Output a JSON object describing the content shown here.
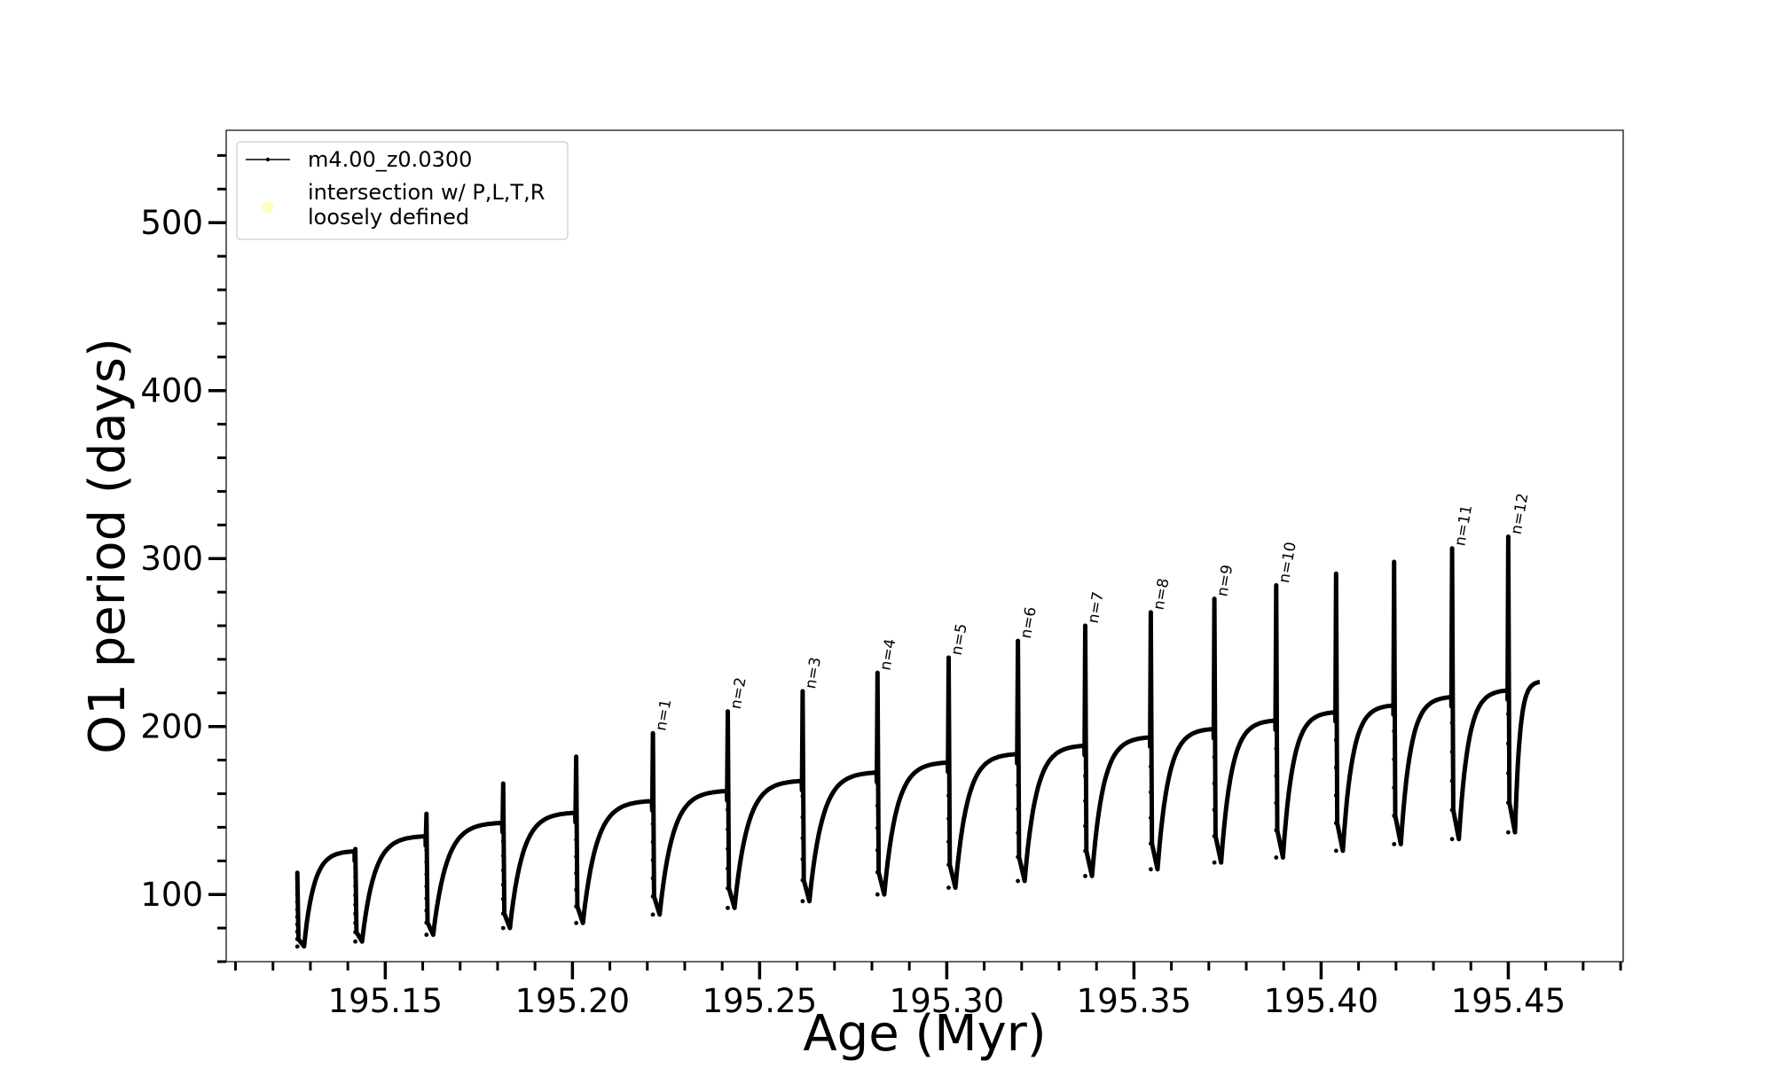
{
  "chart_data": {
    "type": "line",
    "xlabel": "Age (Myr)",
    "ylabel": "O1 period (days)",
    "xlim": [
      195.1075,
      195.4807
    ],
    "ylim": [
      60,
      555
    ],
    "xticks": [
      195.15,
      195.2,
      195.25,
      195.3,
      195.35,
      195.4,
      195.45
    ],
    "xtick_labels": [
      "195.15",
      "195.20",
      "195.25",
      "195.30",
      "195.35",
      "195.40",
      "195.45"
    ],
    "yticks": [
      100,
      200,
      300,
      400,
      500
    ],
    "ytick_labels": [
      "100",
      "200",
      "300",
      "400",
      "500"
    ],
    "x_minor_step": 0.01,
    "y_minor_step": 20,
    "grid": false,
    "legend": {
      "placement": "upper left",
      "entries": [
        {
          "label": "m4.00_z0.0300",
          "marker": "line-dot",
          "color": "#000000"
        },
        {
          "label_lines": [
            "intersection w/ P,L,T,R",
            "loosely defined"
          ],
          "marker": "circle",
          "color": "#ffff99"
        }
      ]
    },
    "series": [
      {
        "name": "m4.00_z0.0300",
        "color": "#000000",
        "cycles": [
          {
            "start": 195.1265,
            "min": 69,
            "plateau": 126,
            "spike": 113
          },
          {
            "start": 195.142,
            "min": 72,
            "plateau": 135,
            "spike": 127
          },
          {
            "start": 195.161,
            "min": 76,
            "plateau": 143,
            "spike": 148
          },
          {
            "start": 195.1815,
            "min": 80,
            "plateau": 149,
            "spike": 166
          },
          {
            "start": 195.201,
            "min": 83,
            "plateau": 156,
            "spike": 182
          },
          {
            "start": 195.2215,
            "min": 88,
            "plateau": 162,
            "spike": 196
          },
          {
            "start": 195.2415,
            "min": 92,
            "plateau": 168,
            "spike": 209
          },
          {
            "start": 195.2615,
            "min": 96,
            "plateau": 173,
            "spike": 221
          },
          {
            "start": 195.2815,
            "min": 100,
            "plateau": 179,
            "spike": 232
          },
          {
            "start": 195.3005,
            "min": 104,
            "plateau": 184,
            "spike": 241
          },
          {
            "start": 195.319,
            "min": 108,
            "plateau": 189,
            "spike": 251
          },
          {
            "start": 195.337,
            "min": 111,
            "plateau": 194,
            "spike": 260
          },
          {
            "start": 195.3545,
            "min": 115,
            "plateau": 199,
            "spike": 268
          },
          {
            "start": 195.3715,
            "min": 119,
            "plateau": 204,
            "spike": 276
          },
          {
            "start": 195.388,
            "min": 122,
            "plateau": 209,
            "spike": 284
          },
          {
            "start": 195.404,
            "min": 126,
            "plateau": 213,
            "spike": 291
          },
          {
            "start": 195.4195,
            "min": 130,
            "plateau": 218,
            "spike": 298
          },
          {
            "start": 195.435,
            "min": 133,
            "plateau": 222,
            "spike": 306
          },
          {
            "start": 195.45,
            "min": 137,
            "plateau": 227,
            "spike": 313
          }
        ],
        "end": 195.4585
      }
    ],
    "annotations": [
      {
        "text": "n=1",
        "x": 195.2215,
        "y": 196
      },
      {
        "text": "n=2",
        "x": 195.2415,
        "y": 209
      },
      {
        "text": "n=3",
        "x": 195.2615,
        "y": 221
      },
      {
        "text": "n=4",
        "x": 195.2815,
        "y": 232
      },
      {
        "text": "n=5",
        "x": 195.3005,
        "y": 241
      },
      {
        "text": "n=6",
        "x": 195.319,
        "y": 251
      },
      {
        "text": "n=7",
        "x": 195.337,
        "y": 260
      },
      {
        "text": "n=8",
        "x": 195.3545,
        "y": 268
      },
      {
        "text": "n=9",
        "x": 195.3715,
        "y": 276
      },
      {
        "text": "n=10",
        "x": 195.388,
        "y": 284
      },
      {
        "text": "n=11",
        "x": 195.435,
        "y": 306
      },
      {
        "text": "n=12",
        "x": 195.45,
        "y": 313
      }
    ]
  }
}
